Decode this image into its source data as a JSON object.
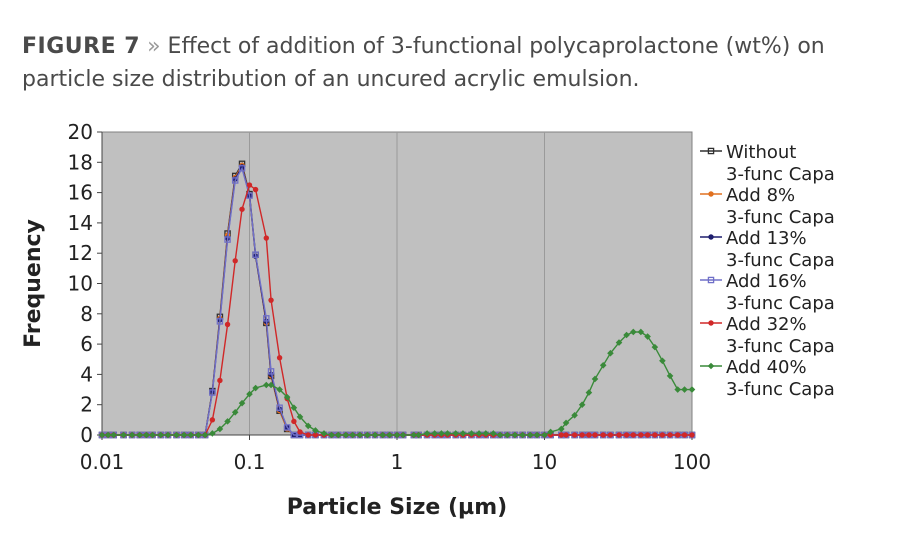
{
  "caption": {
    "figure_label": "FIGURE 7",
    "separator": "»",
    "text": "Effect of addition of 3-functional polycaprolactone (wt%) on particle size distribution of an uncured acrylic emulsion."
  },
  "chart_data": {
    "type": "line",
    "x_scale": "log",
    "xlim": [
      0.01,
      100
    ],
    "ylim": [
      0,
      20
    ],
    "xlabel": "Particle Size (µm)",
    "ylabel": "Frequency",
    "x_ticks": [
      "0.01",
      "0.1",
      "1",
      "10",
      "100"
    ],
    "y_ticks": [
      "0",
      "2",
      "4",
      "6",
      "8",
      "10",
      "12",
      "14",
      "16",
      "18",
      "20"
    ],
    "grid": "vertical at decades",
    "legend_position": "right",
    "plot_background": "#c0c0c0",
    "x": [
      0.01,
      0.011,
      0.012,
      0.014,
      0.016,
      0.018,
      0.02,
      0.022,
      0.025,
      0.028,
      0.032,
      0.036,
      0.04,
      0.045,
      0.05,
      0.056,
      0.063,
      0.071,
      0.08,
      0.089,
      0.1,
      0.11,
      0.13,
      0.14,
      0.16,
      0.18,
      0.2,
      0.22,
      0.25,
      0.28,
      0.32,
      0.36,
      0.4,
      0.45,
      0.5,
      0.56,
      0.63,
      0.71,
      0.8,
      0.89,
      1,
      1.1,
      1.3,
      1.4,
      1.6,
      1.8,
      2,
      2.2,
      2.5,
      2.8,
      3.2,
      3.6,
      4,
      4.5,
      5,
      5.6,
      6.3,
      7.1,
      8,
      8.9,
      10,
      11,
      13,
      14,
      16,
      18,
      20,
      22,
      25,
      28,
      32,
      36,
      40,
      45,
      50,
      56,
      63,
      71,
      80,
      89,
      100
    ],
    "series": [
      {
        "name": "Without 3-func Capa",
        "color": "#303030",
        "marker": "square-open",
        "values": [
          0,
          0,
          0,
          0,
          0,
          0,
          0,
          0,
          0,
          0,
          0,
          0,
          0,
          0,
          0,
          2.9,
          7.8,
          13.3,
          17.1,
          17.9,
          15.9,
          11.9,
          7.4,
          3.9,
          1.6,
          0.4,
          0,
          0,
          0,
          0,
          0,
          0,
          0,
          0,
          0,
          0,
          0,
          0,
          0,
          0,
          0,
          0,
          0,
          0,
          0,
          0,
          0,
          0,
          0,
          0,
          0,
          0,
          0,
          0,
          0,
          0,
          0,
          0,
          0,
          0,
          0,
          0,
          0,
          0,
          0,
          0,
          0,
          0,
          0,
          0,
          0,
          0,
          0,
          0,
          0,
          0,
          0,
          0,
          0,
          0,
          0
        ]
      },
      {
        "name": "Add 8% 3-func Capa",
        "color": "#e07020",
        "marker": "circle",
        "values": [
          0,
          0,
          0,
          0,
          0,
          0,
          0,
          0,
          0,
          0,
          0,
          0,
          0,
          0,
          0,
          2.9,
          7.7,
          13.2,
          17.0,
          17.8,
          15.8,
          11.8,
          7.4,
          3.9,
          1.6,
          0.4,
          0,
          0,
          0,
          0,
          0,
          0,
          0,
          0,
          0,
          0,
          0,
          0,
          0,
          0,
          0,
          0,
          0,
          0,
          0,
          0,
          0,
          0,
          0,
          0,
          0,
          0,
          0,
          0,
          0,
          0,
          0,
          0,
          0,
          0,
          0,
          0,
          0,
          0,
          0,
          0,
          0,
          0,
          0,
          0,
          0,
          0,
          0,
          0,
          0,
          0,
          0,
          0,
          0,
          0,
          0
        ]
      },
      {
        "name": "Add 13% 3-func Capa",
        "color": "#1e1e6e",
        "marker": "circle",
        "values": [
          0,
          0,
          0,
          0,
          0,
          0,
          0,
          0,
          0,
          0,
          0,
          0,
          0,
          0,
          0,
          2.9,
          7.6,
          13.0,
          16.9,
          17.7,
          15.8,
          11.8,
          7.5,
          4.0,
          1.7,
          0.5,
          0,
          0,
          0,
          0,
          0,
          0,
          0,
          0,
          0,
          0,
          0,
          0,
          0,
          0,
          0,
          0,
          0,
          0,
          0,
          0,
          0,
          0,
          0,
          0,
          0,
          0,
          0,
          0,
          0,
          0,
          0,
          0,
          0,
          0,
          0,
          0,
          0,
          0,
          0,
          0,
          0,
          0,
          0,
          0,
          0,
          0,
          0,
          0,
          0,
          0,
          0,
          0,
          0,
          0,
          0
        ]
      },
      {
        "name": "Add 16% 3-func Capa",
        "color": "#7070c8",
        "marker": "square-open",
        "values": [
          0,
          0,
          0,
          0,
          0,
          0,
          0,
          0,
          0,
          0,
          0,
          0,
          0,
          0,
          0,
          2.8,
          7.5,
          12.9,
          16.8,
          17.6,
          15.8,
          11.9,
          7.7,
          4.2,
          1.8,
          0.5,
          0,
          0,
          0,
          0,
          0,
          0,
          0,
          0,
          0,
          0,
          0,
          0,
          0,
          0,
          0,
          0,
          0,
          0,
          0,
          0,
          0,
          0,
          0,
          0,
          0,
          0,
          0,
          0,
          0,
          0,
          0,
          0,
          0,
          0,
          0,
          0,
          0,
          0,
          0,
          0,
          0,
          0,
          0,
          0,
          0,
          0,
          0,
          0,
          0,
          0,
          0,
          0,
          0,
          0,
          0
        ]
      },
      {
        "name": "Add 32% 3-func Capa",
        "color": "#d02828",
        "marker": "circle",
        "values": [
          0,
          0,
          0,
          0,
          0,
          0,
          0,
          0,
          0,
          0,
          0,
          0,
          0,
          0,
          0,
          1.0,
          3.6,
          7.3,
          11.5,
          14.9,
          16.5,
          16.2,
          13.0,
          8.9,
          5.1,
          2.4,
          0.9,
          0.2,
          0,
          0,
          0,
          0,
          0,
          0,
          0,
          0,
          0,
          0,
          0,
          0,
          0,
          0,
          0,
          0,
          0,
          0,
          0,
          0,
          0,
          0,
          0,
          0,
          0,
          0,
          0,
          0,
          0,
          0,
          0,
          0,
          0,
          0,
          0,
          0,
          0,
          0,
          0,
          0,
          0,
          0,
          0,
          0,
          0,
          0,
          0,
          0,
          0,
          0,
          0,
          0,
          0
        ]
      },
      {
        "name": "Add 40% 3-func Capa",
        "color": "#3a8a3a",
        "marker": "diamond",
        "values": [
          0,
          0,
          0,
          0,
          0,
          0,
          0,
          0,
          0,
          0,
          0,
          0,
          0,
          0,
          0,
          0.1,
          0.4,
          0.9,
          1.5,
          2.1,
          2.7,
          3.1,
          3.3,
          3.3,
          3.0,
          2.5,
          1.8,
          1.2,
          0.6,
          0.3,
          0.1,
          0,
          0,
          0,
          0,
          0,
          0,
          0,
          0,
          0,
          0,
          0,
          0,
          0,
          0.1,
          0.1,
          0.1,
          0.1,
          0.1,
          0.1,
          0.1,
          0.1,
          0.1,
          0.1,
          0,
          0,
          0,
          0,
          0,
          0,
          0,
          0.2,
          0.4,
          0.8,
          1.3,
          2.0,
          2.8,
          3.7,
          4.6,
          5.4,
          6.1,
          6.6,
          6.8,
          6.8,
          6.5,
          5.8,
          4.9,
          3.9,
          3.0,
          3.0,
          3.0
        ]
      }
    ]
  }
}
